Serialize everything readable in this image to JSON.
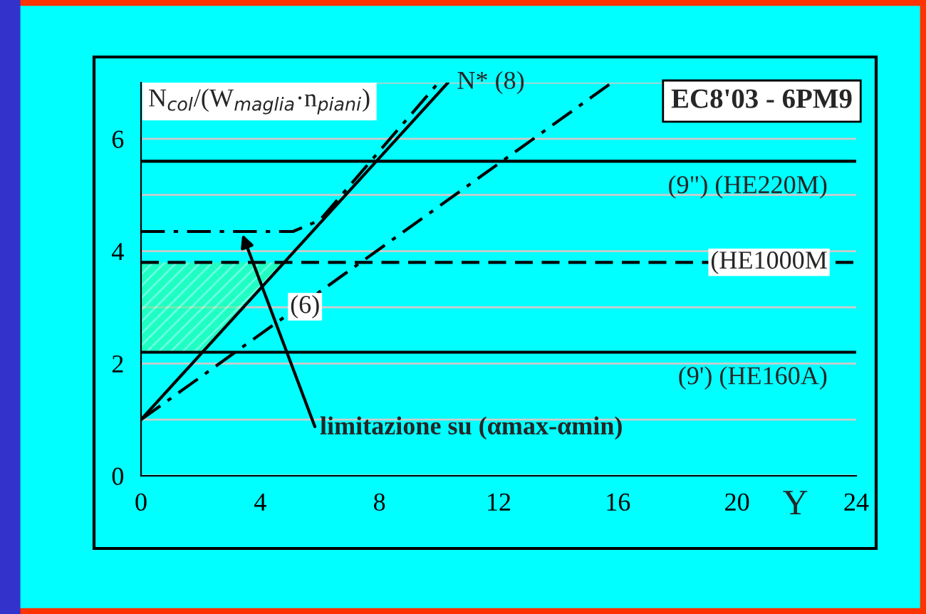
{
  "chart_data": {
    "type": "line",
    "ylabel": "N$_{col}$/(W$_{maglia}$·n$_{piani}$)",
    "xlabel": "Y",
    "series": [
      {
        "name": "N* (8)",
        "color": "#000000",
        "line_style": "solid",
        "x": [
          0,
          10.3
        ],
        "values": [
          1,
          7.0
        ]
      },
      {
        "name": "(6)",
        "color": "#000000",
        "line_style": "dashdot",
        "x": [
          0,
          15.8
        ],
        "values": [
          1,
          7.0
        ]
      },
      {
        "color": "#000000",
        "line_style": "dashdot",
        "x": [
          0,
          5.1,
          6.0,
          9.9
        ],
        "values": [
          4.35,
          4.35,
          4.55,
          6.95
        ]
      }
    ],
    "xlim": [
      0,
      24
    ],
    "xticks": [
      0,
      4,
      8,
      12,
      16,
      20,
      24
    ],
    "ylim": [
      0,
      7
    ],
    "yticks": [
      0,
      {
        "value": 1,
        "label": null
      },
      2,
      {
        "value": 3,
        "label": null
      },
      4,
      {
        "value": 5,
        "label": null
      },
      6,
      {
        "value": 7,
        "label": null
      }
    ],
    "grid": "y",
    "ref_lines": [
      {
        "axis": "y",
        "value": 5.6,
        "label": "(9\") (HE220M)",
        "color": "#000000",
        "line_style": "solid"
      },
      {
        "axis": "y",
        "value": 3.8,
        "label": "(HE1000M",
        "color": "#000000",
        "line_style": "dashed"
      },
      {
        "axis": "y",
        "value": 2.2,
        "label": "(9') (HE160A)",
        "color": "#000000",
        "line_style": "solid"
      }
    ],
    "bands": [
      {
        "axis": "y",
        "from": 2.2,
        "to": 3.8,
        "color": "#33ff99"
      }
    ],
    "annotations": [
      "EC8'03 - 6PM9",
      {
        "text": "limitazione su (αmax-αmin)",
        "x": 3.4,
        "y": 4.3
      }
    ]
  }
}
